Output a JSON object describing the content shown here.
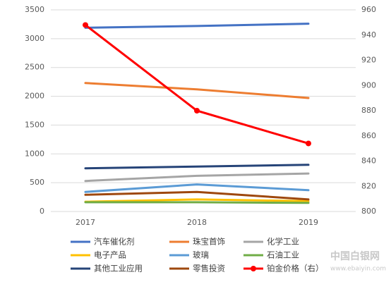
{
  "chart_data": {
    "type": "line",
    "categories": [
      "2017",
      "2018",
      "2019"
    ],
    "series": [
      {
        "name": "汽车催化剂",
        "color": "#4472c4",
        "values": [
          3190,
          3220,
          3260
        ]
      },
      {
        "name": "珠宝首饰",
        "color": "#ed7d31",
        "values": [
          2230,
          2120,
          1970
        ]
      },
      {
        "name": "化学工业",
        "color": "#a5a5a5",
        "values": [
          530,
          620,
          660
        ]
      },
      {
        "name": "电子产品",
        "color": "#ffc000",
        "values": [
          170,
          210,
          180
        ]
      },
      {
        "name": "玻璃",
        "color": "#5b9bd5",
        "values": [
          340,
          470,
          370
        ]
      },
      {
        "name": "石油工业",
        "color": "#70ad47",
        "values": [
          160,
          160,
          150
        ]
      },
      {
        "name": "其他工业应用",
        "color": "#264478",
        "values": [
          750,
          780,
          810
        ]
      },
      {
        "name": "零售投资",
        "color": "#9e480e",
        "values": [
          290,
          340,
          210
        ]
      },
      {
        "name": "铂金价格（右）",
        "color": "#ff0000",
        "values": [
          948,
          880,
          854
        ],
        "axis": "y2",
        "markers": true
      }
    ],
    "ylim": [
      0,
      3500
    ],
    "yticks": [
      0,
      500,
      1000,
      1500,
      2000,
      2500,
      3000,
      3500
    ],
    "y2lim": [
      800,
      960
    ],
    "y2ticks": [
      800,
      820,
      840,
      860,
      880,
      900,
      920,
      940,
      960
    ],
    "grid": true,
    "legend": "bottom",
    "watermark": "中国白银网",
    "watermark_url": "www.ebaiyin.com"
  }
}
